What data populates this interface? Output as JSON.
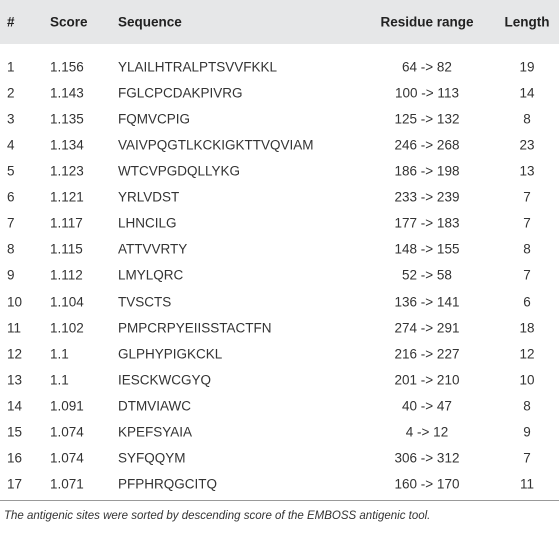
{
  "table": {
    "headers": [
      "#",
      "Score",
      "Sequence",
      "Residue range",
      "Length"
    ],
    "rows": [
      [
        "1",
        "1.156",
        "YLAILHTRALPTSVVFKKL",
        "64 -> 82",
        "19"
      ],
      [
        "2",
        "1.143",
        "FGLCPCDAKPIVRG",
        "100 -> 113",
        "14"
      ],
      [
        "3",
        "1.135",
        "FQMVCPIG",
        "125 -> 132",
        "8"
      ],
      [
        "4",
        "1.134",
        "VAIVPQGTLKCKIGKTTVQVIAM",
        "246 -> 268",
        "23"
      ],
      [
        "5",
        "1.123",
        "WTCVPGDQLLYKG",
        "186 -> 198",
        "13"
      ],
      [
        "6",
        "1.121",
        "YRLVDST",
        "233 -> 239",
        "7"
      ],
      [
        "7",
        "1.117",
        "LHNCILG",
        "177 -> 183",
        "7"
      ],
      [
        "8",
        "1.115",
        "ATTVVRTY",
        "148 -> 155",
        "8"
      ],
      [
        "9",
        "1.112",
        "LMYLQRC",
        "52 -> 58",
        "7"
      ],
      [
        "10",
        "1.104",
        "TVSCTS",
        "136 -> 141",
        "6"
      ],
      [
        "11",
        "1.102",
        "PMPCRPYEIISSTACTFN",
        "274 -> 291",
        "18"
      ],
      [
        "12",
        "1.1",
        "GLPHYPIGKCKL",
        "216 -> 227",
        "12"
      ],
      [
        "13",
        "1.1",
        "IESCKWCGYQ",
        "201 -> 210",
        "10"
      ],
      [
        "14",
        "1.091",
        "DTMVIAWC",
        "40 -> 47",
        "8"
      ],
      [
        "15",
        "1.074",
        "KPEFSYAIA",
        "4 -> 12",
        "9"
      ],
      [
        "16",
        "1.074",
        "SYFQQYM",
        "306 -> 312",
        "7"
      ],
      [
        "17",
        "1.071",
        "PFPHRQGCITQ",
        "160 -> 170",
        "11"
      ]
    ],
    "footnote": "The antigenic sites were sorted by descending score of the EMBOSS antigenic tool."
  }
}
